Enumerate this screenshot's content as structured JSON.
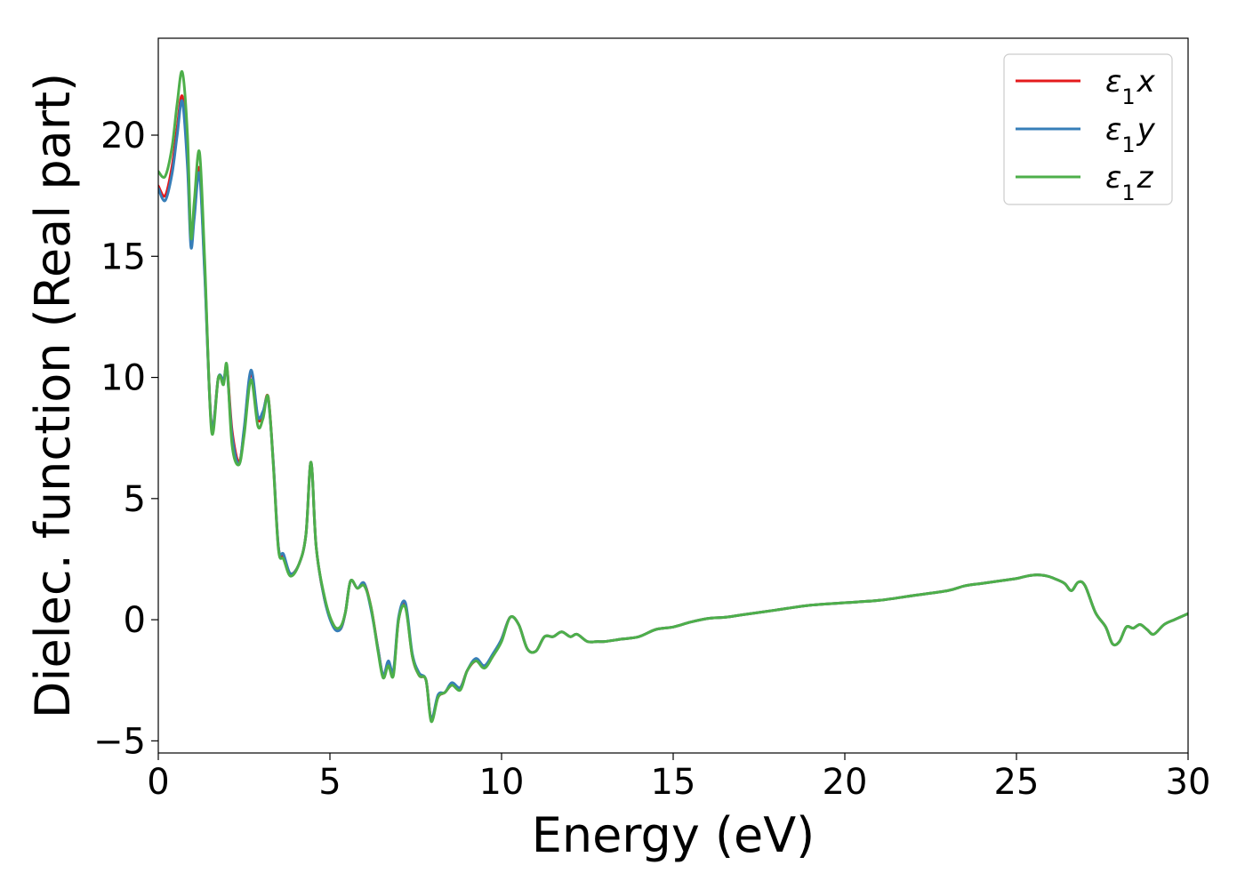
{
  "chart_data": {
    "type": "line",
    "title": "",
    "xlabel": "Energy (eV)",
    "ylabel": "Dielec. function (Real part)",
    "xlim": [
      0,
      30
    ],
    "ylim": [
      -5.5,
      24
    ],
    "xticks": [
      0,
      5,
      10,
      15,
      20,
      25,
      30
    ],
    "yticks": [
      -5,
      0,
      5,
      10,
      15,
      20
    ],
    "xtick_labels": [
      "0",
      "5",
      "10",
      "15",
      "20",
      "25",
      "30"
    ],
    "ytick_labels": [
      "−5",
      "0",
      "5",
      "10",
      "15",
      "20"
    ],
    "grid": false,
    "legend_position": "top-right",
    "series": [
      {
        "name": "ε₁x",
        "legend_base": "ε",
        "legend_sub": "1",
        "legend_var": "x",
        "color": "#e41a1c",
        "x": [
          0,
          0.2,
          0.4,
          0.55,
          0.7,
          0.85,
          0.95,
          1.05,
          1.2,
          1.35,
          1.55,
          1.75,
          1.9,
          2.0,
          2.15,
          2.35,
          2.5,
          2.7,
          2.9,
          3.05,
          3.2,
          3.35,
          3.5,
          3.65,
          3.85,
          4.1,
          4.3,
          4.45,
          4.6,
          4.85,
          5.1,
          5.3,
          5.45,
          5.6,
          5.8,
          6.0,
          6.2,
          6.4,
          6.55,
          6.7,
          6.85,
          7.0,
          7.2,
          7.4,
          7.6,
          7.8,
          7.95,
          8.15,
          8.35,
          8.55,
          8.8,
          9.0,
          9.25,
          9.5,
          9.75,
          10.0,
          10.25,
          10.5,
          10.75,
          11.0,
          11.25,
          11.5,
          11.75,
          12.0,
          12.2,
          12.5,
          12.8,
          13.0,
          13.5,
          14.0,
          14.5,
          15.0,
          15.5,
          16.0,
          16.5,
          17.0,
          18.0,
          19.0,
          20.0,
          21.0,
          22.0,
          23.0,
          23.5,
          24.0,
          24.5,
          25.0,
          25.3,
          25.6,
          25.9,
          26.1,
          26.4,
          26.6,
          26.8,
          27.0,
          27.3,
          27.6,
          27.8,
          28.0,
          28.2,
          28.4,
          28.6,
          28.8,
          29.0,
          29.3,
          29.6,
          30.0
        ],
        "y": [
          17.9,
          17.5,
          18.7,
          20.3,
          21.6,
          19.0,
          15.7,
          17.0,
          18.6,
          14.5,
          8.0,
          10.0,
          9.8,
          10.4,
          7.8,
          6.5,
          7.8,
          10.2,
          8.3,
          8.5,
          9.2,
          6.5,
          3.0,
          2.6,
          1.9,
          2.3,
          3.5,
          6.5,
          3.0,
          0.8,
          -0.2,
          -0.4,
          0.3,
          1.6,
          1.3,
          1.5,
          0.5,
          -1.2,
          -2.3,
          -1.8,
          -2.2,
          0.0,
          0.6,
          -1.5,
          -2.3,
          -2.5,
          -4.1,
          -3.2,
          -3.0,
          -2.7,
          -2.8,
          -2.1,
          -1.7,
          -1.9,
          -1.5,
          -0.8,
          0.1,
          -0.2,
          -1.2,
          -1.3,
          -0.7,
          -0.7,
          -0.5,
          -0.7,
          -0.6,
          -0.9,
          -0.9,
          -0.9,
          -0.8,
          -0.7,
          -0.4,
          -0.3,
          -0.1,
          0.05,
          0.1,
          0.2,
          0.4,
          0.6,
          0.7,
          0.8,
          1.0,
          1.2,
          1.4,
          1.5,
          1.6,
          1.7,
          1.8,
          1.85,
          1.8,
          1.7,
          1.5,
          1.2,
          1.55,
          1.4,
          0.3,
          -0.3,
          -1.0,
          -0.9,
          -0.3,
          -0.35,
          -0.2,
          -0.4,
          -0.6,
          -0.2,
          0.0,
          0.25
        ]
      },
      {
        "name": "ε₁y",
        "legend_base": "ε",
        "legend_sub": "1",
        "legend_var": "y",
        "color": "#377eb8",
        "x": [
          0,
          0.2,
          0.4,
          0.55,
          0.7,
          0.85,
          0.95,
          1.05,
          1.2,
          1.35,
          1.55,
          1.75,
          1.9,
          2.0,
          2.15,
          2.35,
          2.5,
          2.7,
          2.9,
          3.05,
          3.2,
          3.35,
          3.5,
          3.65,
          3.85,
          4.1,
          4.3,
          4.45,
          4.6,
          4.85,
          5.1,
          5.3,
          5.45,
          5.6,
          5.8,
          6.0,
          6.2,
          6.4,
          6.55,
          6.7,
          6.85,
          7.0,
          7.2,
          7.4,
          7.6,
          7.8,
          7.95,
          8.15,
          8.35,
          8.55,
          8.8,
          9.0,
          9.25,
          9.5,
          9.75,
          10.0,
          10.25,
          10.5,
          10.75,
          11.0,
          11.25,
          11.5,
          11.75,
          12.0,
          12.2,
          12.5,
          12.8,
          13.0,
          13.5,
          14.0,
          14.5,
          15.0,
          15.5,
          16.0,
          16.5,
          17.0,
          18.0,
          19.0,
          20.0,
          21.0,
          22.0,
          23.0,
          23.5,
          24.0,
          24.5,
          25.0,
          25.3,
          25.6,
          25.9,
          26.1,
          26.4,
          26.6,
          26.8,
          27.0,
          27.3,
          27.6,
          27.8,
          28.0,
          28.2,
          28.4,
          28.6,
          28.8,
          29.0,
          29.3,
          29.6,
          30.0
        ],
        "y": [
          17.8,
          17.3,
          18.4,
          20.0,
          21.4,
          18.7,
          15.4,
          16.6,
          18.4,
          14.3,
          8.0,
          10.0,
          9.9,
          10.3,
          7.6,
          6.4,
          7.9,
          10.3,
          8.4,
          8.6,
          9.1,
          6.5,
          3.0,
          2.7,
          1.9,
          2.3,
          3.5,
          6.5,
          3.0,
          0.8,
          -0.3,
          -0.4,
          0.3,
          1.6,
          1.3,
          1.5,
          0.4,
          -1.2,
          -2.3,
          -1.7,
          -2.1,
          0.1,
          0.7,
          -1.4,
          -2.2,
          -2.5,
          -4.1,
          -3.1,
          -3.0,
          -2.6,
          -2.8,
          -2.1,
          -1.6,
          -1.9,
          -1.4,
          -0.8,
          0.1,
          -0.2,
          -1.2,
          -1.3,
          -0.7,
          -0.7,
          -0.5,
          -0.7,
          -0.6,
          -0.9,
          -0.9,
          -0.9,
          -0.8,
          -0.7,
          -0.4,
          -0.3,
          -0.1,
          0.05,
          0.1,
          0.2,
          0.4,
          0.6,
          0.7,
          0.8,
          1.0,
          1.2,
          1.4,
          1.5,
          1.6,
          1.7,
          1.8,
          1.85,
          1.8,
          1.7,
          1.5,
          1.2,
          1.55,
          1.4,
          0.3,
          -0.3,
          -1.0,
          -0.9,
          -0.3,
          -0.35,
          -0.2,
          -0.4,
          -0.6,
          -0.2,
          0.0,
          0.25
        ]
      },
      {
        "name": "ε₁z",
        "legend_base": "ε",
        "legend_sub": "1",
        "legend_var": "z",
        "color": "#4daf4a",
        "x": [
          0,
          0.2,
          0.4,
          0.55,
          0.7,
          0.85,
          0.95,
          1.05,
          1.2,
          1.35,
          1.55,
          1.75,
          1.9,
          2.0,
          2.15,
          2.35,
          2.5,
          2.7,
          2.9,
          3.05,
          3.2,
          3.35,
          3.5,
          3.65,
          3.85,
          4.1,
          4.3,
          4.45,
          4.6,
          4.85,
          5.1,
          5.3,
          5.45,
          5.6,
          5.8,
          6.0,
          6.2,
          6.4,
          6.55,
          6.7,
          6.85,
          7.0,
          7.2,
          7.4,
          7.6,
          7.8,
          7.95,
          8.15,
          8.35,
          8.55,
          8.8,
          9.0,
          9.25,
          9.5,
          9.75,
          10.0,
          10.25,
          10.5,
          10.75,
          11.0,
          11.25,
          11.5,
          11.75,
          12.0,
          12.2,
          12.5,
          12.8,
          13.0,
          13.5,
          14.0,
          14.5,
          15.0,
          15.5,
          16.0,
          16.5,
          17.0,
          18.0,
          19.0,
          20.0,
          21.0,
          22.0,
          23.0,
          23.5,
          24.0,
          24.5,
          25.0,
          25.3,
          25.6,
          25.9,
          26.1,
          26.4,
          26.6,
          26.8,
          27.0,
          27.3,
          27.6,
          27.8,
          28.0,
          28.2,
          28.4,
          28.6,
          28.8,
          29.0,
          29.3,
          29.6,
          30.0
        ],
        "y": [
          18.5,
          18.3,
          19.5,
          21.3,
          22.6,
          20.0,
          15.8,
          17.3,
          19.3,
          14.9,
          7.8,
          10.0,
          9.7,
          10.5,
          7.2,
          6.4,
          7.6,
          9.9,
          8.0,
          8.3,
          9.2,
          6.4,
          2.9,
          2.5,
          1.8,
          2.3,
          3.5,
          6.5,
          3.0,
          0.9,
          -0.2,
          -0.3,
          0.3,
          1.6,
          1.3,
          1.4,
          0.5,
          -1.3,
          -2.4,
          -1.9,
          -2.3,
          0.0,
          0.5,
          -1.5,
          -2.3,
          -2.5,
          -4.2,
          -3.2,
          -3.0,
          -2.7,
          -2.9,
          -2.1,
          -1.7,
          -2.0,
          -1.5,
          -0.9,
          0.1,
          -0.2,
          -1.2,
          -1.3,
          -0.7,
          -0.7,
          -0.5,
          -0.7,
          -0.6,
          -0.9,
          -0.9,
          -0.9,
          -0.8,
          -0.7,
          -0.4,
          -0.3,
          -0.1,
          0.05,
          0.1,
          0.2,
          0.4,
          0.6,
          0.7,
          0.8,
          1.0,
          1.2,
          1.4,
          1.5,
          1.6,
          1.7,
          1.8,
          1.85,
          1.8,
          1.7,
          1.5,
          1.2,
          1.55,
          1.4,
          0.3,
          -0.3,
          -1.0,
          -0.9,
          -0.3,
          -0.35,
          -0.2,
          -0.4,
          -0.6,
          -0.2,
          0.0,
          0.25
        ]
      }
    ]
  }
}
